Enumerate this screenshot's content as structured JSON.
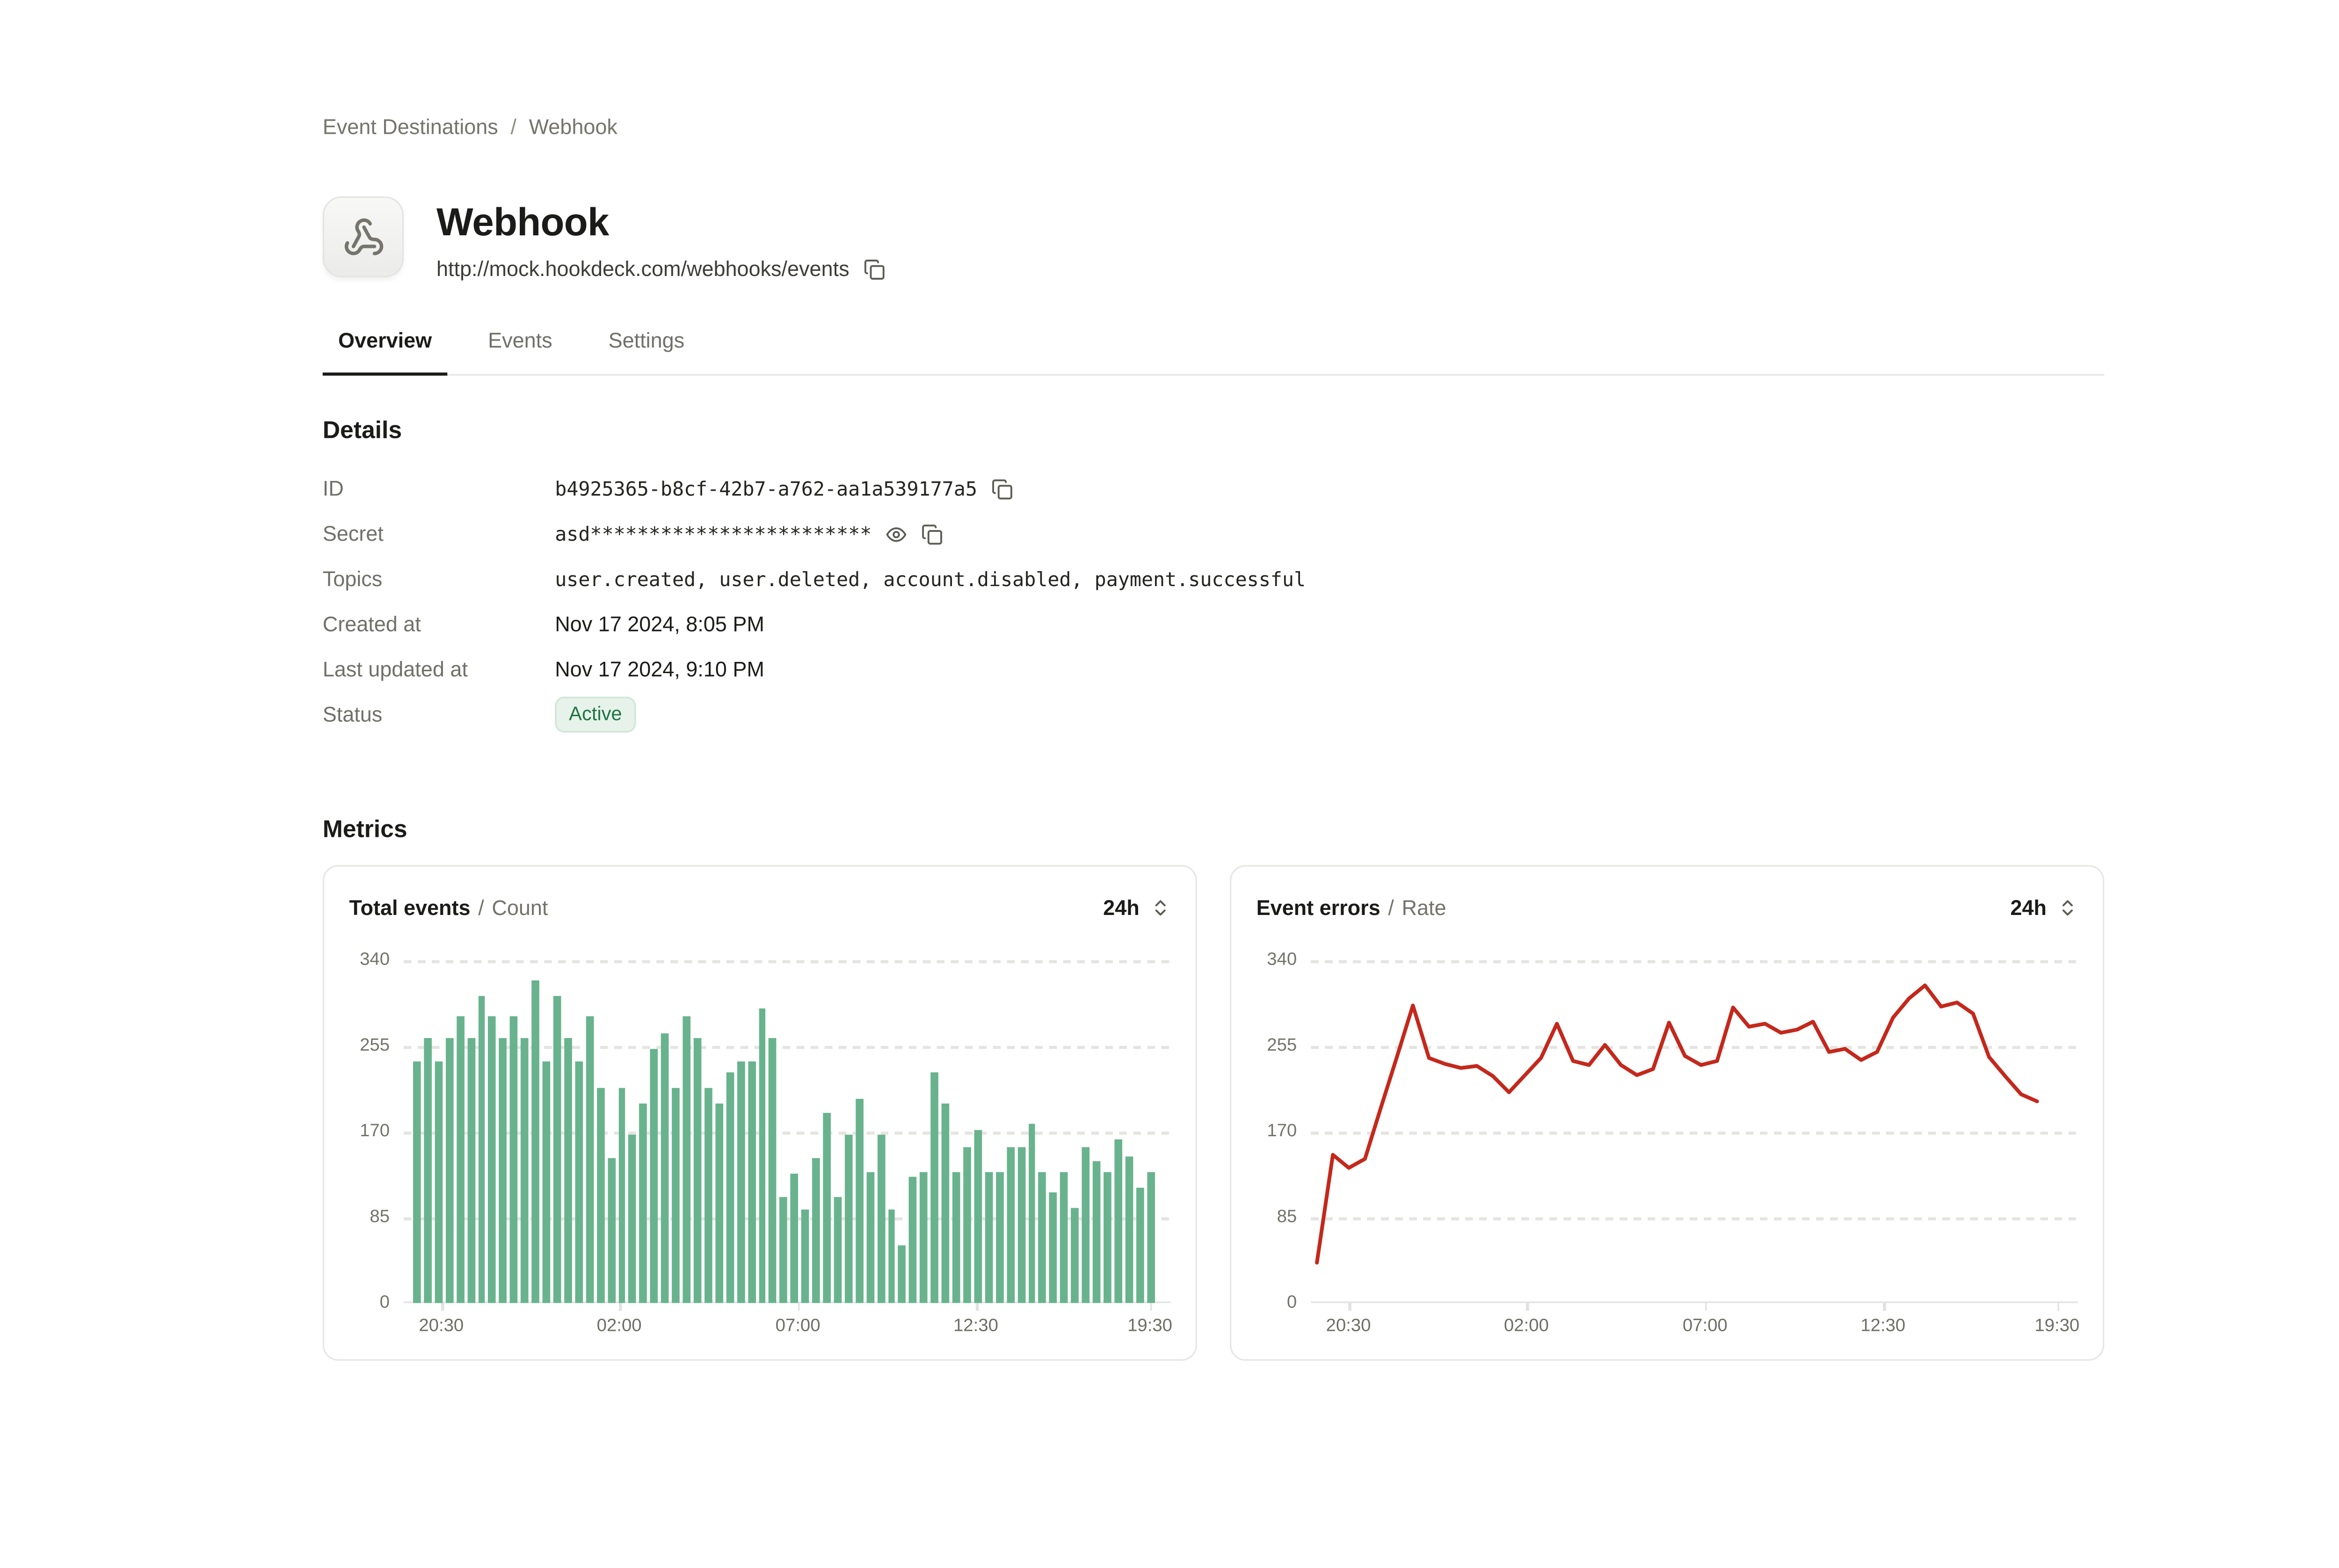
{
  "breadcrumb": {
    "items": [
      "Event Destinations",
      "Webhook"
    ],
    "separator": "/"
  },
  "header": {
    "title": "Webhook",
    "url": "http://mock.hookdeck.com/webhooks/events"
  },
  "tabs": [
    {
      "label": "Overview",
      "active": true
    },
    {
      "label": "Events",
      "active": false
    },
    {
      "label": "Settings",
      "active": false
    }
  ],
  "details": {
    "heading": "Details",
    "rows": {
      "id": {
        "label": "ID",
        "value": "b4925365-b8cf-42b7-a762-aa1a539177a5"
      },
      "secret": {
        "label": "Secret",
        "value": "asd************************"
      },
      "topics": {
        "label": "Topics",
        "value": "user.created, user.deleted, account.disabled, payment.successful"
      },
      "created_at": {
        "label": "Created at",
        "value": "Nov 17 2024, 8:05 PM"
      },
      "last_updated_at": {
        "label": "Last updated at",
        "value": "Nov 17 2024, 9:10 PM"
      },
      "status": {
        "label": "Status",
        "badge": "Active"
      }
    }
  },
  "metrics": {
    "heading": "Metrics",
    "title_separator": "/"
  },
  "colors": {
    "bar_green": "#68b38d",
    "line_red": "#c4281c",
    "badge_text_green": "#1d7642",
    "badge_bg_green": "#e7f2ea",
    "active_tab": "#1b1b19",
    "muted_text": "#70706a"
  },
  "chart_data": [
    {
      "type": "bar",
      "title": "Total events",
      "subtitle": "Count",
      "range": "24h",
      "ylim": [
        0,
        340
      ],
      "yticks": [
        340,
        255,
        170,
        85,
        0
      ],
      "xticks": [
        "20:30",
        "02:00",
        "07:00",
        "12:30",
        "19:30"
      ],
      "xtick_pos": [
        4.9,
        28.1,
        51.4,
        74.6,
        97.3
      ],
      "grid": "dashed-horizontal",
      "color": "#68b38d",
      "values": [
        240,
        262,
        240,
        262,
        285,
        262,
        305,
        285,
        262,
        285,
        262,
        320,
        240,
        305,
        262,
        240,
        285,
        213,
        143,
        213,
        167,
        198,
        252,
        268,
        213,
        285,
        262,
        213,
        198,
        228,
        240,
        240,
        292,
        262,
        105,
        128,
        92,
        143,
        188,
        105,
        167,
        203,
        130,
        167,
        92,
        57,
        125,
        130,
        228,
        198,
        130,
        155,
        172,
        130,
        130,
        155,
        155,
        178,
        130,
        110,
        130,
        95,
        155,
        140,
        130,
        163,
        145,
        115,
        130
      ]
    },
    {
      "type": "line",
      "title": "Event errors",
      "subtitle": "Rate",
      "range": "24h",
      "ylim": [
        0,
        340
      ],
      "yticks": [
        340,
        255,
        170,
        85,
        0
      ],
      "xticks": [
        "20:30",
        "02:00",
        "07:00",
        "12:30",
        "19:30"
      ],
      "xtick_pos": [
        4.9,
        28.1,
        51.4,
        74.6,
        97.3
      ],
      "grid": "dashed-horizontal",
      "color": "#c4281c",
      "values": [
        40,
        147,
        134,
        143,
        194,
        244,
        295,
        243,
        237,
        233,
        235,
        225,
        209,
        226,
        243,
        277,
        240,
        236,
        256,
        236,
        226,
        232,
        278,
        245,
        236,
        240,
        293,
        274,
        277,
        268,
        271,
        279,
        249,
        252,
        241,
        249,
        283,
        302,
        315,
        294,
        298,
        287,
        244,
        225,
        207,
        200
      ]
    }
  ]
}
